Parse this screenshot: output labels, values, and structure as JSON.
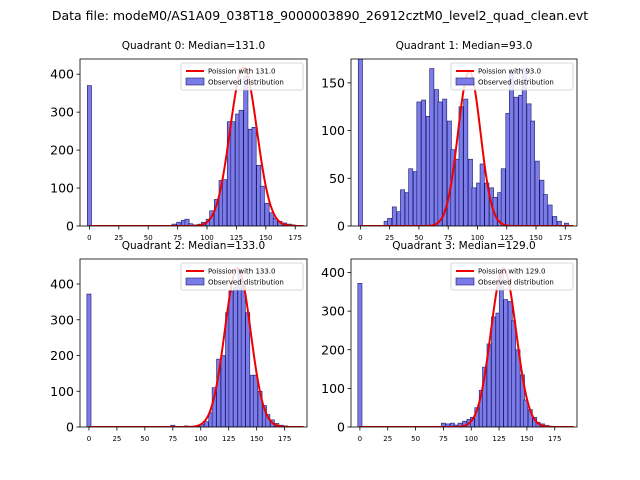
{
  "title": "Data file: modeM0/AS1A09_038T18_9000003890_26912cztM0_level2_quad_clean.evt",
  "colors": {
    "bar_fill": "#7b7bea",
    "bar_edge": "#1a1a66",
    "poisson_line": "#ee0000",
    "axis": "#000000"
  },
  "chart_data": [
    {
      "type": "bar",
      "title": "Quadrant 0: Median=131.0",
      "legend": {
        "line_label": "Poission with 131.0",
        "bar_label": "Observed distribution",
        "placement": "upper-right"
      },
      "xlim": [
        -8,
        185
      ],
      "ylim": [
        0,
        440
      ],
      "xticks": [
        0,
        25,
        50,
        75,
        100,
        125,
        150,
        175
      ],
      "yticks": [
        0,
        100,
        200,
        300,
        400
      ],
      "bin_width": 3.6,
      "bars": [
        [
          0,
          370
        ],
        [
          72,
          5
        ],
        [
          76,
          10
        ],
        [
          80,
          15
        ],
        [
          83,
          18
        ],
        [
          86,
          6
        ],
        [
          90,
          3
        ],
        [
          94,
          5
        ],
        [
          97,
          10
        ],
        [
          101,
          18
        ],
        [
          104,
          40
        ],
        [
          108,
          70
        ],
        [
          112,
          120
        ],
        [
          115,
          122
        ],
        [
          119,
          275
        ],
        [
          122,
          275
        ],
        [
          126,
          295
        ],
        [
          129,
          305
        ],
        [
          133,
          395
        ],
        [
          137,
          255
        ],
        [
          140,
          260
        ],
        [
          144,
          160
        ],
        [
          147,
          105
        ],
        [
          151,
          60
        ],
        [
          155,
          35
        ],
        [
          158,
          20
        ],
        [
          162,
          12
        ],
        [
          166,
          8
        ],
        [
          170,
          5
        ],
        [
          173,
          3
        ]
      ],
      "poisson_mean": 131.0,
      "poisson_peak": 418,
      "poisson_sigma": 11.4
    },
    {
      "type": "bar",
      "title": "Quadrant 1: Median=93.0",
      "legend": {
        "line_label": "Poission with 93.0",
        "bar_label": "Observed distribution",
        "placement": "upper-right"
      },
      "xlim": [
        -8,
        185
      ],
      "ylim": [
        0,
        175
      ],
      "xticks": [
        0,
        25,
        50,
        75,
        100,
        125,
        150,
        175
      ],
      "yticks": [
        0,
        50,
        100,
        150
      ],
      "bin_width": 3.6,
      "bars": [
        [
          0,
          175
        ],
        [
          22,
          5
        ],
        [
          25,
          8
        ],
        [
          29,
          20
        ],
        [
          33,
          15
        ],
        [
          36,
          38
        ],
        [
          40,
          35
        ],
        [
          43,
          60
        ],
        [
          47,
          57
        ],
        [
          50,
          130
        ],
        [
          54,
          132
        ],
        [
          58,
          115
        ],
        [
          61,
          165
        ],
        [
          65,
          143
        ],
        [
          68,
          130
        ],
        [
          72,
          133
        ],
        [
          76,
          110
        ],
        [
          79,
          80
        ],
        [
          83,
          70
        ],
        [
          86,
          125
        ],
        [
          90,
          133
        ],
        [
          94,
          70
        ],
        [
          97,
          40
        ],
        [
          101,
          45
        ],
        [
          104,
          65
        ],
        [
          108,
          45
        ],
        [
          112,
          40
        ],
        [
          115,
          30
        ],
        [
          119,
          35
        ],
        [
          122,
          60
        ],
        [
          126,
          118
        ],
        [
          129,
          160
        ],
        [
          133,
          135
        ],
        [
          137,
          137
        ],
        [
          140,
          165
        ],
        [
          144,
          128
        ],
        [
          147,
          110
        ],
        [
          151,
          68
        ],
        [
          155,
          48
        ],
        [
          158,
          33
        ],
        [
          162,
          22
        ],
        [
          166,
          10
        ],
        [
          170,
          5
        ],
        [
          176,
          3
        ]
      ],
      "poisson_mean": 93.0,
      "poisson_peak": 162,
      "poisson_sigma": 9.6
    },
    {
      "type": "bar",
      "title": "Quadrant 2: Median=133.0",
      "legend": {
        "line_label": "Poission with 133.0",
        "bar_label": "Observed distribution",
        "placement": "upper-right"
      },
      "xlim": [
        -8,
        195
      ],
      "ylim": [
        0,
        470
      ],
      "xticks": [
        0,
        25,
        50,
        75,
        100,
        125,
        150,
        175
      ],
      "yticks": [
        0,
        100,
        200,
        300,
        400
      ],
      "bin_width": 3.7,
      "bars": [
        [
          0,
          372
        ],
        [
          75,
          5
        ],
        [
          87,
          3
        ],
        [
          97,
          3
        ],
        [
          101,
          8
        ],
        [
          105,
          15
        ],
        [
          109,
          40
        ],
        [
          112,
          110
        ],
        [
          116,
          190
        ],
        [
          120,
          200
        ],
        [
          124,
          320
        ],
        [
          127,
          380
        ],
        [
          131,
          390
        ],
        [
          135,
          440
        ],
        [
          138,
          400
        ],
        [
          142,
          320
        ],
        [
          146,
          145
        ],
        [
          149,
          145
        ],
        [
          153,
          100
        ],
        [
          157,
          60
        ],
        [
          160,
          35
        ],
        [
          164,
          20
        ],
        [
          168,
          10
        ],
        [
          172,
          5
        ],
        [
          176,
          3
        ],
        [
          183,
          2
        ]
      ],
      "poisson_mean": 133.0,
      "poisson_peak": 445,
      "poisson_sigma": 11.5
    },
    {
      "type": "bar",
      "title": "Quadrant 3: Median=129.0",
      "legend": {
        "line_label": "Poission with 129.0",
        "bar_label": "Observed distribution",
        "placement": "upper-right"
      },
      "xlim": [
        -8,
        195
      ],
      "ylim": [
        0,
        435
      ],
      "xticks": [
        0,
        25,
        50,
        75,
        100,
        125,
        150,
        175
      ],
      "yticks": [
        0,
        100,
        200,
        300,
        400
      ],
      "bin_width": 3.7,
      "bars": [
        [
          0,
          372
        ],
        [
          75,
          10
        ],
        [
          79,
          8
        ],
        [
          83,
          10
        ],
        [
          86,
          5
        ],
        [
          90,
          10
        ],
        [
          94,
          15
        ],
        [
          98,
          20
        ],
        [
          101,
          25
        ],
        [
          105,
          50
        ],
        [
          109,
          95
        ],
        [
          112,
          155
        ],
        [
          116,
          215
        ],
        [
          120,
          285
        ],
        [
          124,
          295
        ],
        [
          127,
          400
        ],
        [
          131,
          330
        ],
        [
          135,
          325
        ],
        [
          138,
          275
        ],
        [
          142,
          200
        ],
        [
          146,
          135
        ],
        [
          149,
          70
        ],
        [
          153,
          45
        ],
        [
          157,
          25
        ],
        [
          160,
          12
        ],
        [
          164,
          8
        ],
        [
          168,
          4
        ],
        [
          172,
          2
        ]
      ],
      "poisson_mean": 129.0,
      "poisson_peak": 410,
      "poisson_sigma": 11.3
    }
  ]
}
